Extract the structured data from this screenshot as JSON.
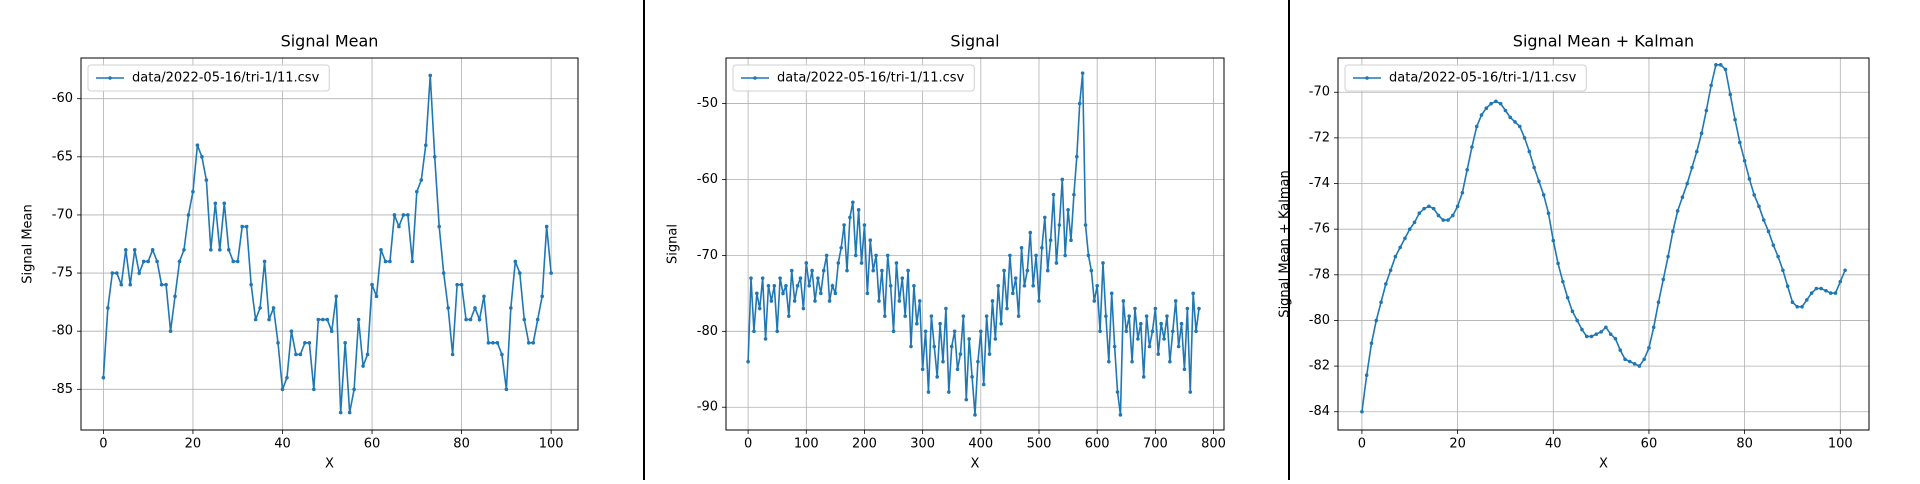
{
  "chart_data": [
    {
      "type": "line",
      "title": "Signal Mean",
      "xlabel": "X",
      "ylabel": "Signal Mean",
      "grid": true,
      "legend": "upper left",
      "xlim": [
        -5,
        106
      ],
      "ylim": [
        -88.5,
        -56.5
      ],
      "xticks": [
        0,
        20,
        40,
        60,
        80,
        100
      ],
      "yticks": [
        -85,
        -80,
        -75,
        -70,
        -65,
        -60
      ],
      "x": [
        0,
        1,
        2,
        3,
        4,
        5,
        6,
        7,
        8,
        9,
        10,
        11,
        12,
        13,
        14,
        15,
        16,
        17,
        18,
        19,
        20,
        21,
        22,
        23,
        24,
        25,
        26,
        27,
        28,
        29,
        30,
        31,
        32,
        33,
        34,
        35,
        36,
        37,
        38,
        39,
        40,
        41,
        42,
        43,
        44,
        45,
        46,
        47,
        48,
        49,
        50,
        51,
        52,
        53,
        54,
        55,
        56,
        57,
        58,
        59,
        60,
        61,
        62,
        63,
        64,
        65,
        66,
        67,
        68,
        69,
        70,
        71,
        72,
        73,
        74,
        75,
        76,
        77,
        78,
        79,
        80,
        81,
        82,
        83,
        84,
        85,
        86,
        87,
        88,
        89,
        90,
        91,
        92,
        93,
        94,
        95,
        96,
        97,
        98,
        99,
        100
      ],
      "series": [
        {
          "name": "data/2022-05-16/tri-1/11.csv",
          "color": "#1f77b4",
          "values": [
            -84,
            -78,
            -75,
            -75,
            -76,
            -73,
            -76,
            -73,
            -75,
            -74,
            -74,
            -73,
            -74,
            -76,
            -76,
            -80,
            -77,
            -74,
            -73,
            -70,
            -68,
            -64,
            -65,
            -67,
            -73,
            -69,
            -73,
            -69,
            -73,
            -74,
            -74,
            -71,
            -71,
            -76,
            -79,
            -78,
            -74,
            -79,
            -78,
            -81,
            -85,
            -84,
            -80,
            -82,
            -82,
            -81,
            -81,
            -85,
            -79,
            -79,
            -79,
            -80,
            -77,
            -87,
            -81,
            -87,
            -85,
            -79,
            -83,
            -82,
            -76,
            -77,
            -73,
            -74,
            -74,
            -70,
            -71,
            -70,
            -70,
            -74,
            -68,
            -67,
            -64,
            -58,
            -65,
            -71,
            -75,
            -78,
            -82,
            -76,
            -76,
            -79,
            -79,
            -78,
            -79,
            -77,
            -81,
            -81,
            -81,
            -82,
            -85,
            -78,
            -74,
            -75,
            -79,
            -81,
            -81,
            -79,
            -77,
            -71,
            -75
          ]
        }
      ]
    },
    {
      "type": "line",
      "title": "Signal",
      "xlabel": "X",
      "ylabel": "Signal",
      "grid": true,
      "legend": "upper left",
      "xlim": [
        -38,
        818
      ],
      "ylim": [
        -93,
        -44
      ],
      "xticks": [
        0,
        100,
        200,
        300,
        400,
        500,
        600,
        700,
        800
      ],
      "yticks": [
        -90,
        -80,
        -70,
        -60,
        -50
      ],
      "x": [
        0,
        5,
        10,
        15,
        20,
        25,
        30,
        35,
        40,
        45,
        50,
        55,
        60,
        65,
        70,
        75,
        80,
        85,
        90,
        95,
        100,
        105,
        110,
        115,
        120,
        125,
        130,
        135,
        140,
        145,
        150,
        155,
        160,
        165,
        170,
        175,
        180,
        185,
        190,
        195,
        200,
        205,
        210,
        215,
        220,
        225,
        230,
        235,
        240,
        245,
        250,
        255,
        260,
        265,
        270,
        275,
        280,
        285,
        290,
        295,
        300,
        305,
        310,
        315,
        320,
        325,
        330,
        335,
        340,
        345,
        350,
        355,
        360,
        365,
        370,
        375,
        380,
        385,
        390,
        395,
        400,
        405,
        410,
        415,
        420,
        425,
        430,
        435,
        440,
        445,
        450,
        455,
        460,
        465,
        470,
        475,
        480,
        485,
        490,
        495,
        500,
        505,
        510,
        515,
        520,
        525,
        530,
        535,
        540,
        545,
        550,
        555,
        560,
        565,
        570,
        575,
        580,
        585,
        590,
        595,
        600,
        605,
        610,
        615,
        620,
        625,
        630,
        635,
        640,
        645,
        650,
        655,
        660,
        665,
        670,
        675,
        680,
        685,
        690,
        695,
        700,
        705,
        710,
        715,
        720,
        725,
        730,
        735,
        740,
        745,
        750,
        755,
        760,
        765,
        770,
        775
      ],
      "series": [
        {
          "name": "data/2022-05-16/tri-1/11.csv",
          "color": "#1f77b4",
          "values": [
            -84,
            -73,
            -80,
            -75,
            -77,
            -73,
            -81,
            -74,
            -76,
            -74,
            -80,
            -73,
            -75,
            -74,
            -78,
            -72,
            -76,
            -74,
            -73,
            -77,
            -71,
            -74,
            -72,
            -76,
            -73,
            -75,
            -72,
            -70,
            -76,
            -74,
            -75,
            -71,
            -69,
            -66,
            -72,
            -65,
            -63,
            -70,
            -64,
            -71,
            -66,
            -75,
            -68,
            -72,
            -70,
            -76,
            -72,
            -78,
            -70,
            -74,
            -80,
            -71,
            -76,
            -73,
            -78,
            -72,
            -82,
            -74,
            -79,
            -76,
            -85,
            -80,
            -88,
            -78,
            -82,
            -86,
            -79,
            -84,
            -77,
            -88,
            -82,
            -80,
            -85,
            -83,
            -78,
            -89,
            -81,
            -86,
            -91,
            -84,
            -80,
            -87,
            -78,
            -83,
            -76,
            -81,
            -74,
            -79,
            -72,
            -77,
            -70,
            -75,
            -73,
            -78,
            -69,
            -74,
            -72,
            -67,
            -74,
            -70,
            -76,
            -69,
            -65,
            -72,
            -68,
            -62,
            -71,
            -66,
            -60,
            -70,
            -64,
            -68,
            -62,
            -57,
            -50,
            -46,
            -66,
            -70,
            -72,
            -76,
            -74,
            -80,
            -71,
            -78,
            -84,
            -75,
            -82,
            -88,
            -91,
            -76,
            -80,
            -78,
            -84,
            -77,
            -81,
            -79,
            -86,
            -78,
            -82,
            -80,
            -77,
            -83,
            -79,
            -81,
            -78,
            -84,
            -80,
            -76,
            -82,
            -79,
            -85,
            -77,
            -88,
            -75,
            -80,
            -77
          ]
        }
      ]
    },
    {
      "type": "line",
      "title": "Signal Mean + Kalman",
      "xlabel": "X",
      "ylabel": "Signal Mean + Kalman",
      "grid": true,
      "legend": "upper left",
      "xlim": [
        -5,
        106
      ],
      "ylim": [
        -84.8,
        -68.5
      ],
      "xticks": [
        0,
        20,
        40,
        60,
        80,
        100
      ],
      "yticks": [
        -84,
        -82,
        -80,
        -78,
        -76,
        -74,
        -72,
        -70
      ],
      "x": [
        0,
        1,
        2,
        3,
        4,
        5,
        6,
        7,
        8,
        9,
        10,
        11,
        12,
        13,
        14,
        15,
        16,
        17,
        18,
        19,
        20,
        21,
        22,
        23,
        24,
        25,
        26,
        27,
        28,
        29,
        30,
        31,
        32,
        33,
        34,
        35,
        36,
        37,
        38,
        39,
        40,
        41,
        42,
        43,
        44,
        45,
        46,
        47,
        48,
        49,
        50,
        51,
        52,
        53,
        54,
        55,
        56,
        57,
        58,
        59,
        60,
        61,
        62,
        63,
        64,
        65,
        66,
        67,
        68,
        69,
        70,
        71,
        72,
        73,
        74,
        75,
        76,
        77,
        78,
        79,
        80,
        81,
        82,
        83,
        84,
        85,
        86,
        87,
        88,
        89,
        90,
        91,
        92,
        93,
        94,
        95,
        96,
        97,
        98,
        99,
        100,
        101
      ],
      "series": [
        {
          "name": "data/2022-05-16/tri-1/11.csv",
          "color": "#1f77b4",
          "values": [
            -84,
            -82.4,
            -81,
            -80,
            -79.2,
            -78.4,
            -77.8,
            -77.2,
            -76.8,
            -76.4,
            -76,
            -75.7,
            -75.3,
            -75.1,
            -75,
            -75.1,
            -75.4,
            -75.6,
            -75.6,
            -75.4,
            -75,
            -74.4,
            -73.4,
            -72.4,
            -71.5,
            -71,
            -70.7,
            -70.5,
            -70.4,
            -70.5,
            -70.8,
            -71.1,
            -71.3,
            -71.5,
            -72,
            -72.6,
            -73.3,
            -73.9,
            -74.5,
            -75.3,
            -76.5,
            -77.5,
            -78.3,
            -79,
            -79.6,
            -80,
            -80.4,
            -80.7,
            -80.7,
            -80.6,
            -80.5,
            -80.3,
            -80.6,
            -80.8,
            -81.3,
            -81.7,
            -81.8,
            -81.9,
            -82,
            -81.7,
            -81.2,
            -80.3,
            -79.2,
            -78.2,
            -77.2,
            -76.1,
            -75.2,
            -74.6,
            -74,
            -73.3,
            -72.6,
            -71.8,
            -70.8,
            -69.7,
            -68.8,
            -68.8,
            -69,
            -70.1,
            -71.2,
            -72.2,
            -73,
            -73.8,
            -74.5,
            -75,
            -75.6,
            -76.1,
            -76.7,
            -77.2,
            -77.8,
            -78.5,
            -79.2,
            -79.4,
            -79.4,
            -79.1,
            -78.8,
            -78.6,
            -78.6,
            -78.7,
            -78.8,
            -78.8,
            -78.3,
            -77.8
          ]
        }
      ]
    }
  ]
}
